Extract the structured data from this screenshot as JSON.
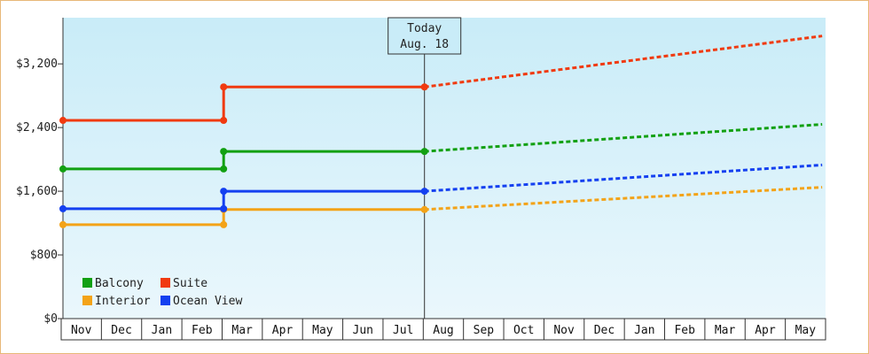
{
  "chart_data": {
    "type": "line",
    "step": true,
    "x_start": "Nov",
    "categories": [
      "Nov",
      "Dec",
      "Jan",
      "Feb",
      "Mar",
      "Apr",
      "May",
      "Jun",
      "Jul",
      "Aug",
      "Sep",
      "Oct",
      "Nov",
      "Dec",
      "Jan",
      "Feb",
      "Mar",
      "Apr",
      "May"
    ],
    "y_tick_labels": [
      "$0",
      "$800",
      "$1,600",
      "$2,400",
      "$3,200"
    ],
    "y_tick_values": [
      0,
      800,
      1600,
      2400,
      3200
    ],
    "ylim": [
      0,
      3780
    ],
    "grid": false,
    "background": "light-blue gradient",
    "legend_position": "bottom-left",
    "today_marker": {
      "line1": "Today",
      "line2": "Aug. 18",
      "x": 9.0
    },
    "series": [
      {
        "name": "Balcony",
        "color": "#12a012",
        "history": [
          [
            0,
            1880
          ],
          [
            4.0,
            1880
          ],
          [
            4.0,
            2100
          ],
          [
            9.0,
            2100
          ]
        ],
        "forecast_end": [
          18.9,
          2440
        ]
      },
      {
        "name": "Suite",
        "color": "#f03a10",
        "history": [
          [
            0,
            2490
          ],
          [
            4.0,
            2490
          ],
          [
            4.0,
            2910
          ],
          [
            9.0,
            2910
          ]
        ],
        "forecast_end": [
          18.9,
          3550
        ]
      },
      {
        "name": "Interior",
        "color": "#f3a318",
        "history": [
          [
            0,
            1180
          ],
          [
            4.0,
            1180
          ],
          [
            4.0,
            1370
          ],
          [
            9.0,
            1370
          ]
        ],
        "forecast_end": [
          18.9,
          1650
        ]
      },
      {
        "name": "Ocean View",
        "color": "#1440f0",
        "history": [
          [
            0,
            1380
          ],
          [
            4.0,
            1380
          ],
          [
            4.0,
            1600
          ],
          [
            9.0,
            1600
          ]
        ],
        "forecast_end": [
          18.9,
          1930
        ]
      }
    ]
  }
}
